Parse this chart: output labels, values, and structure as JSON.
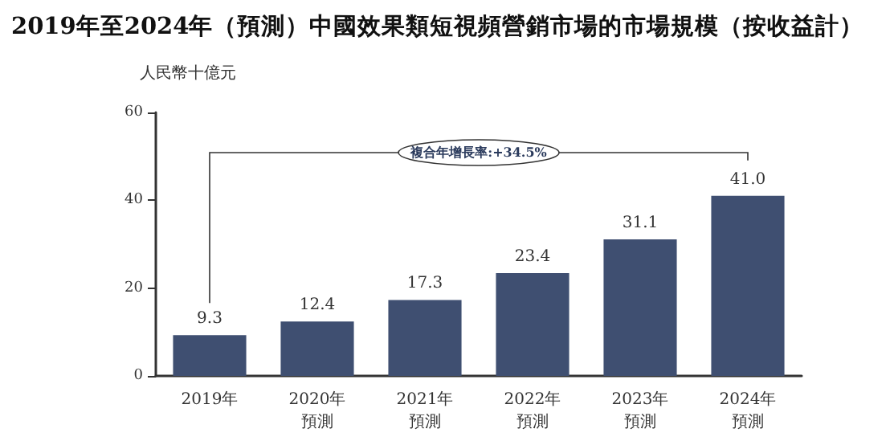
{
  "chart_data": {
    "type": "bar",
    "title": "2019年至2024年（預測）中國效果類短視頻營銷市場的市場規模（按收益計）",
    "ylabel": "人民幣十億元",
    "categories": [
      "2019年",
      "2020年預測",
      "2021年預測",
      "2022年預測",
      "2023年預測",
      "2024年預測"
    ],
    "values": [
      9.3,
      12.4,
      17.3,
      23.4,
      31.1,
      41.0
    ],
    "color": "#3f4f71",
    "value_labels": [
      "9.3",
      "12.4",
      "17.3",
      "23.4",
      "31.1",
      "41.0"
    ],
    "ylim": [
      0,
      60
    ],
    "yticks": [
      0,
      20,
      40,
      60
    ],
    "grid": false,
    "annotations": [
      "複合年增長率:+34.5%"
    ]
  }
}
